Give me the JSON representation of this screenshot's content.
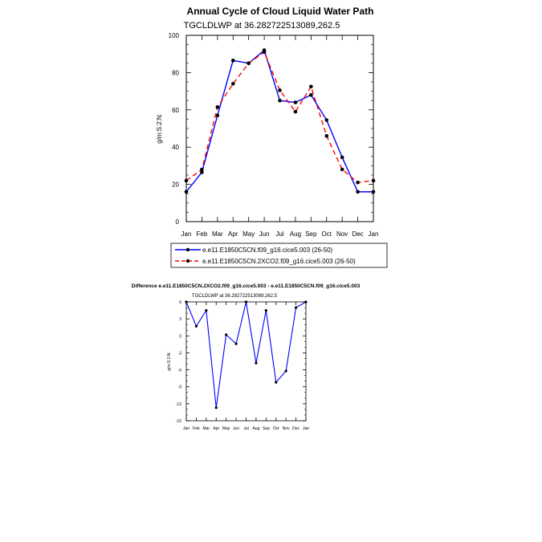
{
  "months": [
    "Jan",
    "Feb",
    "Mar",
    "Apr",
    "May",
    "Jun",
    "Jul",
    "Aug",
    "Sep",
    "Oct",
    "Nov",
    "Dec",
    "Jan"
  ],
  "chart_data": [
    {
      "type": "line",
      "title": "Annual Cycle of Cloud Liquid Water Path",
      "subtitle": "TGCLDLWP at 36.282722513089,262.5",
      "ylabel": "g/m:S:2:N:",
      "ylim": [
        0,
        100
      ],
      "yticks": [
        0,
        20,
        40,
        60,
        80,
        100
      ],
      "series": [
        {
          "name": "e.e11.E1850C5CN.f09_g16.cice5.003 (26-50)",
          "color": "#0000ff",
          "dash": "solid",
          "values": [
            16.0,
            26.5,
            57.0,
            86.5,
            85.0,
            92.0,
            65.0,
            64.0,
            68.0,
            54.5,
            34.5,
            16.0,
            16.0
          ]
        },
        {
          "name": "e.e11.E1850C5CN.2XCO2.f09_g16.cice5.003 (26-50)",
          "color": "#ff0000",
          "dash": "dashed",
          "values": [
            22.0,
            28.0,
            61.5,
            74.0,
            85.0,
            91.0,
            70.5,
            59.0,
            72.5,
            46.0,
            28.0,
            21.0,
            22.0
          ]
        }
      ]
    },
    {
      "type": "line",
      "title": "Difference e.e11.E1850C5CN.2XCO2.f09_g16.cice5.003 - e.e11.E1850C5CN.f09_g16.cice5.003",
      "subtitle": "TGCLDLWP at 36.282722513089,262.5",
      "ylabel": "g/m:S:2:N:",
      "ylim": [
        -15,
        6
      ],
      "yticks": [
        6,
        3,
        0,
        -3,
        -6,
        -9,
        -12,
        -15
      ],
      "series": [
        {
          "name": "difference",
          "color": "#0000ff",
          "dash": "solid",
          "values": [
            6.0,
            1.7,
            4.5,
            -12.7,
            0.2,
            -1.4,
            6.0,
            -4.8,
            4.5,
            -8.2,
            -6.2,
            5.0,
            6.0
          ]
        }
      ]
    }
  ]
}
